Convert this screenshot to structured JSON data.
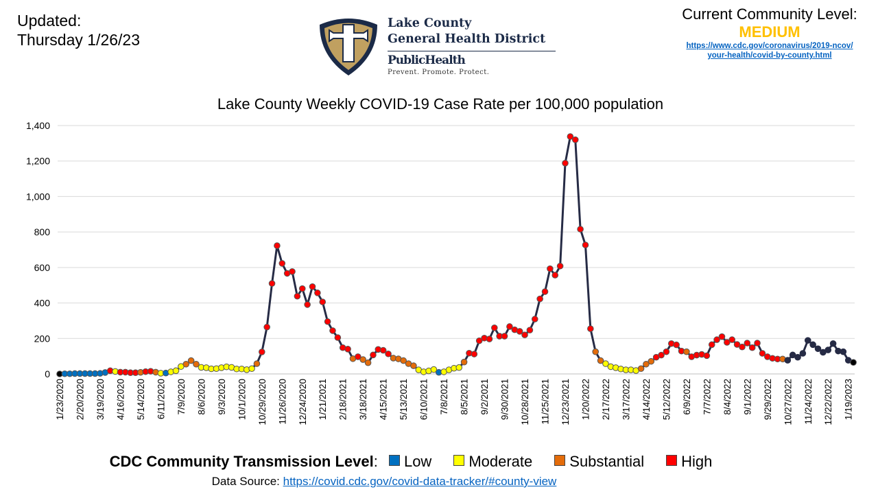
{
  "header": {
    "updated_label": "Updated:",
    "updated_date": "Thursday 1/26/23",
    "logo": {
      "line1": "Lake County",
      "line2": "General Health District",
      "line3": "PublicHealth",
      "tagline": "Prevent. Promote. Protect."
    },
    "community_level": {
      "label": "Current Community Level:",
      "value": "MEDIUM",
      "value_color": "#FFC000",
      "link_line1": "https://www.cdc.gov/coronavirus/2019-ncov/",
      "link_line2": "your-health/covid-by-county.html"
    }
  },
  "legend": {
    "title": "CDC Community Transmission Level",
    "colon": ":",
    "items": [
      {
        "code": "L",
        "label": "Low",
        "color": "#0070C0"
      },
      {
        "code": "M",
        "label": "Moderate",
        "color": "#FFFF00"
      },
      {
        "code": "S",
        "label": "Substantial",
        "color": "#E46C0A"
      },
      {
        "code": "H",
        "label": "High",
        "color": "#FF0000"
      }
    ]
  },
  "source": {
    "label": "Data Source: ",
    "link": "https://covid.cdc.gov/covid-data-tracker/#county-view"
  },
  "chart_data": {
    "type": "line",
    "title": "Lake County Weekly COVID-19 Case Rate per 100,000 population",
    "xlabel": "",
    "ylabel": "",
    "ylim": [
      0,
      1400
    ],
    "y_ticks": [
      0,
      200,
      400,
      600,
      800,
      1000,
      1200,
      1400
    ],
    "y_tick_labels": [
      "0",
      "200",
      "400",
      "600",
      "800",
      "1,000",
      "1,200",
      "1,400"
    ],
    "grid": "horizontal",
    "line_color": "#262B45",
    "marker_colors": {
      "X": "#000000",
      "L": "#0070C0",
      "M": "#FFFF00",
      "S": "#E46C0A",
      "H": "#FF0000",
      "U": "#262B45"
    },
    "x_tick_labels": [
      "1/23/2020",
      "2/20/2020",
      "3/19/2020",
      "4/16/2020",
      "5/14/2020",
      "6/11/2020",
      "7/9/2020",
      "8/6/2020",
      "9/3/2020",
      "10/1/2020",
      "10/29/2020",
      "11/26/2020",
      "12/24/2020",
      "1/21/2021",
      "2/18/2021",
      "3/18/2021",
      "4/15/2021",
      "5/13/2021",
      "6/10/2021",
      "7/8/2021",
      "8/5/2021",
      "9/2/2021",
      "9/30/2021",
      "10/28/2021",
      "11/25/2021",
      "12/23/2021",
      "1/20/2022",
      "2/17/2022",
      "3/17/2022",
      "4/14/2022",
      "5/12/2022",
      "6/9/2022",
      "7/7/2022",
      "8/4/2022",
      "9/1/2022",
      "9/29/2022",
      "10/27/2022",
      "11/24/2022",
      "12/22/2022",
      "1/19/2023"
    ],
    "x": [
      "1/23/2020",
      "1/30/2020",
      "2/6/2020",
      "2/13/2020",
      "2/20/2020",
      "2/27/2020",
      "3/5/2020",
      "3/12/2020",
      "3/19/2020",
      "3/26/2020",
      "4/2/2020",
      "4/9/2020",
      "4/16/2020",
      "4/23/2020",
      "4/30/2020",
      "5/7/2020",
      "5/14/2020",
      "5/21/2020",
      "5/28/2020",
      "6/4/2020",
      "6/11/2020",
      "6/18/2020",
      "6/25/2020",
      "7/2/2020",
      "7/9/2020",
      "7/16/2020",
      "7/23/2020",
      "7/30/2020",
      "8/6/2020",
      "8/13/2020",
      "8/20/2020",
      "8/27/2020",
      "9/3/2020",
      "9/10/2020",
      "9/17/2020",
      "9/24/2020",
      "10/1/2020",
      "10/8/2020",
      "10/15/2020",
      "10/22/2020",
      "10/29/2020",
      "11/5/2020",
      "11/12/2020",
      "11/19/2020",
      "11/26/2020",
      "12/3/2020",
      "12/10/2020",
      "12/17/2020",
      "12/24/2020",
      "12/31/2020",
      "1/7/2021",
      "1/14/2021",
      "1/21/2021",
      "1/28/2021",
      "2/4/2021",
      "2/11/2021",
      "2/18/2021",
      "2/25/2021",
      "3/4/2021",
      "3/11/2021",
      "3/18/2021",
      "3/25/2021",
      "4/1/2021",
      "4/8/2021",
      "4/15/2021",
      "4/22/2021",
      "4/29/2021",
      "5/6/2021",
      "5/13/2021",
      "5/20/2021",
      "5/27/2021",
      "6/3/2021",
      "6/10/2021",
      "6/17/2021",
      "6/24/2021",
      "7/1/2021",
      "7/8/2021",
      "7/15/2021",
      "7/22/2021",
      "7/29/2021",
      "8/5/2021",
      "8/12/2021",
      "8/19/2021",
      "8/26/2021",
      "9/2/2021",
      "9/9/2021",
      "9/16/2021",
      "9/23/2021",
      "9/30/2021",
      "10/7/2021",
      "10/14/2021",
      "10/21/2021",
      "10/28/2021",
      "11/4/2021",
      "11/11/2021",
      "11/18/2021",
      "11/25/2021",
      "12/2/2021",
      "12/9/2021",
      "12/16/2021",
      "12/23/2021",
      "12/30/2021",
      "1/6/2022",
      "1/13/2022",
      "1/20/2022",
      "1/27/2022",
      "2/3/2022",
      "2/10/2022",
      "2/17/2022",
      "2/24/2022",
      "3/3/2022",
      "3/10/2022",
      "3/17/2022",
      "3/24/2022",
      "3/31/2022",
      "4/7/2022",
      "4/14/2022",
      "4/21/2022",
      "4/28/2022",
      "5/5/2022",
      "5/12/2022",
      "5/19/2022",
      "5/26/2022",
      "6/2/2022",
      "6/9/2022",
      "6/16/2022",
      "6/23/2022",
      "6/30/2022",
      "7/7/2022",
      "7/14/2022",
      "7/21/2022",
      "7/28/2022",
      "8/4/2022",
      "8/11/2022",
      "8/18/2022",
      "8/25/2022",
      "9/1/2022",
      "9/8/2022",
      "9/15/2022",
      "9/22/2022",
      "9/29/2022",
      "10/6/2022",
      "10/13/2022",
      "10/20/2022",
      "10/27/2022",
      "11/3/2022",
      "11/10/2022",
      "11/17/2022",
      "11/24/2022",
      "12/1/2022",
      "12/8/2022",
      "12/15/2022",
      "12/22/2022",
      "12/29/2022",
      "1/5/2023",
      "1/12/2023",
      "1/19/2023",
      "1/26/2023"
    ],
    "values": [
      0,
      1,
      1,
      2,
      2,
      2,
      2,
      2,
      3,
      8,
      18,
      14,
      10,
      10,
      7,
      7,
      9,
      13,
      15,
      10,
      4,
      5,
      12,
      18,
      42,
      55,
      75,
      55,
      37,
      35,
      29,
      30,
      35,
      40,
      37,
      28,
      28,
      24,
      30,
      58,
      124,
      264,
      510,
      723,
      623,
      567,
      577,
      438,
      481,
      391,
      492,
      457,
      406,
      295,
      244,
      205,
      148,
      140,
      86,
      97,
      81,
      63,
      107,
      138,
      133,
      113,
      89,
      85,
      75,
      58,
      46,
      23,
      12,
      17,
      25,
      9,
      12,
      23,
      32,
      36,
      67,
      117,
      112,
      187,
      202,
      197,
      260,
      213,
      213,
      267,
      249,
      240,
      220,
      247,
      309,
      423,
      464,
      593,
      557,
      608,
      1188,
      1338,
      1320,
      816,
      727,
      255,
      125,
      75,
      58,
      41,
      35,
      28,
      23,
      23,
      19,
      30,
      55,
      71,
      94,
      106,
      125,
      171,
      164,
      129,
      125,
      97,
      106,
      110,
      103,
      165,
      193,
      210,
      178,
      193,
      166,
      152,
      174,
      148,
      174,
      116,
      97,
      88,
      84,
      84,
      77,
      107,
      94,
      116,
      189,
      165,
      142,
      122,
      135,
      171,
      129,
      125,
      77,
      65
    ],
    "levels": "XLLLLLLLLLHMHHHHSHHSMLMMMSSSMMMMMMMMMMMSHHHHHHHHHHHHHHHHHHSHSSHHHHSSSSSMMMMLMMMMSHHHHHHHHHHHHHHHHHHHHHHHHHSSMMMMMMMSSSHHHHHHSHHHHHHHHHHHHHHHHHHSUUUUUUUUUUUUU"
  }
}
